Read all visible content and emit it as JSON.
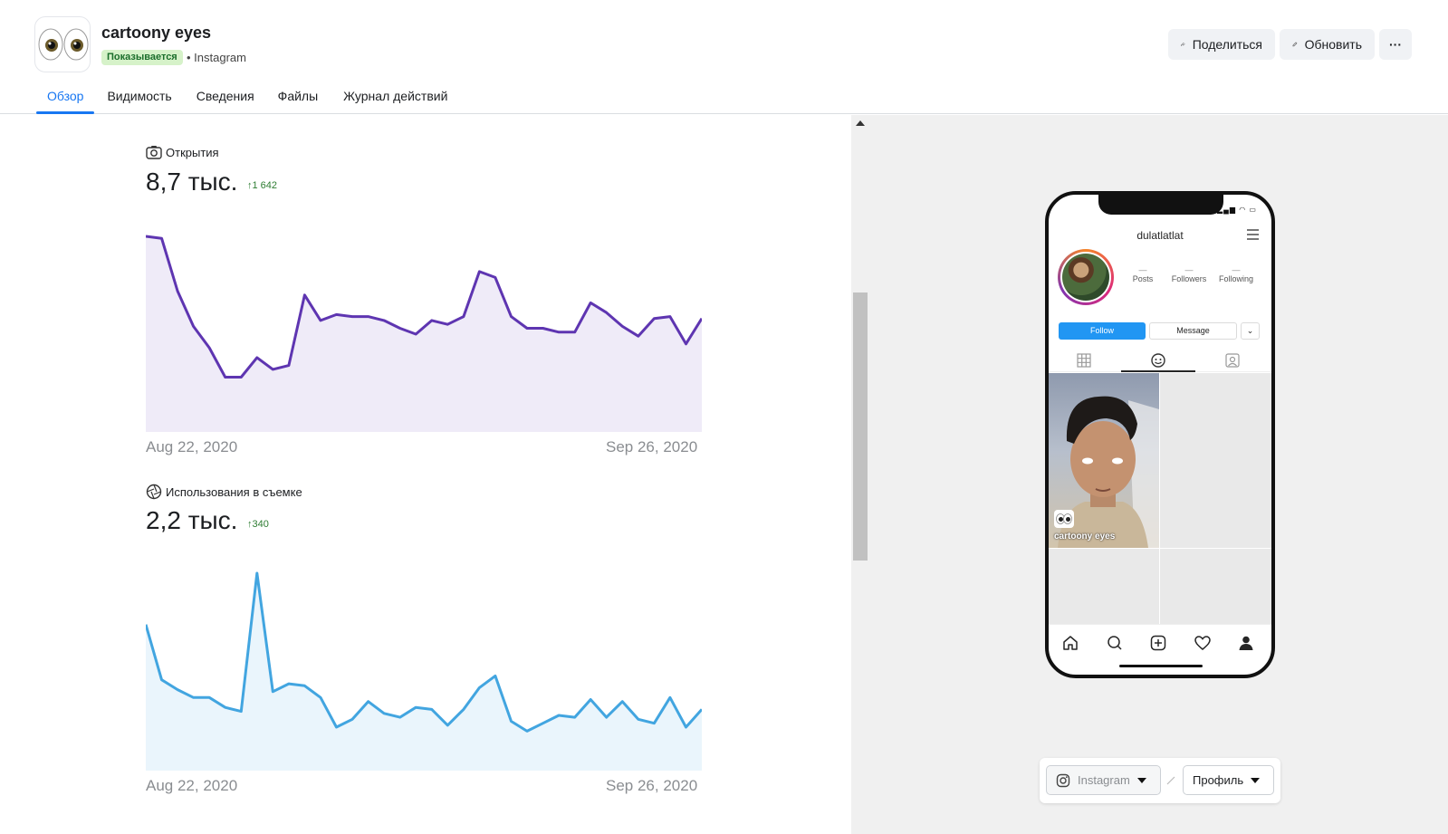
{
  "header": {
    "title": "cartoony eyes",
    "status_badge": "Показывается",
    "platform": "• Instagram",
    "share_label": "Поделиться",
    "update_label": "Обновить",
    "more_label": "···"
  },
  "tabs": [
    {
      "label": "Обзор"
    },
    {
      "label": "Видимость"
    },
    {
      "label": "Сведения"
    },
    {
      "label": "Файлы"
    },
    {
      "label": "Журнал действий"
    }
  ],
  "metrics": [
    {
      "label": "Открытия",
      "value": "8,7 тыс.",
      "delta": "↑1 642"
    },
    {
      "label": "Использования в съемке",
      "value": "2,2 тыс.",
      "delta": "↑340"
    }
  ],
  "chart_data": [
    {
      "type": "area",
      "title": "Открытия",
      "x_start": "Aug 22, 2020",
      "x_end": "Sep 26, 2020",
      "color": "#5e35b1",
      "fill": "#efebf8",
      "ylim": [
        0,
        100
      ],
      "values": [
        100,
        99,
        72,
        54,
        43,
        28,
        28,
        38,
        32,
        34,
        70,
        57,
        60,
        59,
        59,
        57,
        53,
        50,
        57,
        55,
        59,
        82,
        79,
        59,
        53,
        53,
        51,
        51,
        66,
        61,
        54,
        49,
        58,
        59,
        45,
        58
      ]
    },
    {
      "type": "area",
      "title": "Использования в съемке",
      "x_start": "Aug 22, 2020",
      "x_end": "Sep 26, 2020",
      "color": "#42a5e0",
      "fill": "#eaf5fc",
      "ylim": [
        0,
        100
      ],
      "values": [
        74,
        46,
        41,
        37,
        37,
        32,
        30,
        100,
        40,
        44,
        43,
        37,
        22,
        26,
        35,
        29,
        27,
        32,
        31,
        23,
        31,
        42,
        48,
        25,
        20,
        24,
        28,
        27,
        36,
        27,
        35,
        26,
        24,
        37,
        22,
        31
      ]
    }
  ],
  "preview": {
    "status_icons": "▂▄▆ ◠ ▭",
    "username": "dulatlatlat",
    "stats": [
      {
        "count": "—",
        "label": "Posts"
      },
      {
        "count": "—",
        "label": "Followers"
      },
      {
        "count": "—",
        "label": "Following"
      }
    ],
    "follow_label": "Follow",
    "message_label": "Message",
    "more_label": "⌄",
    "post_caption": "cartoony eyes"
  },
  "bottom_bar": {
    "platform_select": "Instagram",
    "view_select": "Профиль"
  }
}
